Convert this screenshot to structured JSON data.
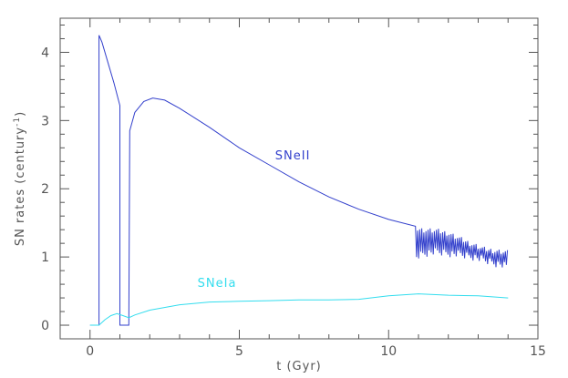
{
  "chart_data": {
    "type": "line",
    "xlabel": "t  (Gyr)",
    "ylabel_main": "SN rates (century",
    "ylabel_sup": "-1",
    "ylabel_close": ")",
    "xlim": [
      -1,
      15
    ],
    "ylim": [
      -0.2,
      4.5
    ],
    "x_ticks": [
      0,
      5,
      10,
      15
    ],
    "y_ticks": [
      0,
      1,
      2,
      3,
      4
    ],
    "grid": false,
    "series": [
      {
        "name": "SNeII",
        "color": "#3340cc",
        "x": [
          0.0,
          0.3,
          0.3,
          0.4,
          0.6,
          0.8,
          1.0,
          1.0,
          1.05,
          1.3,
          1.33,
          1.5,
          1.8,
          2.1,
          2.5,
          3.0,
          4.0,
          5.0,
          6.0,
          7.0,
          8.0,
          9.0,
          10.0,
          10.9
        ],
        "values": [
          0.0,
          0.0,
          4.25,
          4.15,
          3.85,
          3.55,
          3.22,
          0.0,
          0.0,
          0.0,
          2.85,
          3.12,
          3.28,
          3.33,
          3.3,
          3.18,
          2.9,
          2.6,
          2.35,
          2.1,
          1.88,
          1.7,
          1.55,
          1.45
        ],
        "noise_region": {
          "x": [
            10.9,
            11.2,
            11.6,
            12.0,
            12.4,
            12.8,
            13.2,
            13.6,
            14.0
          ],
          "upper": [
            1.45,
            1.43,
            1.42,
            1.38,
            1.3,
            1.22,
            1.15,
            1.12,
            1.1
          ],
          "lower": [
            0.95,
            1.0,
            1.02,
            1.0,
            0.98,
            0.95,
            0.9,
            0.85,
            0.8
          ]
        }
      },
      {
        "name": "SNeIa",
        "color": "#33ddee",
        "x": [
          0.0,
          0.3,
          0.5,
          0.7,
          0.9,
          1.1,
          1.3,
          1.5,
          2.0,
          3.0,
          4.0,
          5.0,
          6.0,
          7.0,
          8.0,
          9.0,
          10.0,
          11.0,
          12.0,
          13.0,
          14.0
        ],
        "values": [
          0.0,
          0.0,
          0.08,
          0.14,
          0.17,
          0.14,
          0.11,
          0.15,
          0.22,
          0.3,
          0.34,
          0.35,
          0.36,
          0.37,
          0.37,
          0.38,
          0.43,
          0.46,
          0.44,
          0.43,
          0.4
        ]
      }
    ]
  }
}
